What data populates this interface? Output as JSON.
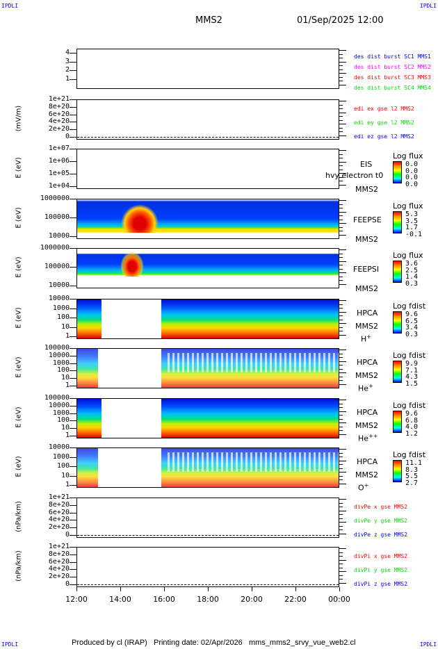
{
  "corners": "IPDLI",
  "header": {
    "spacecraft": "MMS2",
    "datetime": "01/Sep/2025 12:00"
  },
  "chart_data": {
    "type": "heatmap",
    "x_ticks": [
      "12:00",
      "14:00",
      "16:00",
      "18:00",
      "20:00",
      "22:00",
      "00:00"
    ],
    "panels": [
      {
        "id": "des",
        "ylabel": "",
        "yticks": [
          "4",
          "3",
          "2",
          "1"
        ],
        "legend": [
          {
            "text": "des dist burst SC1 MMS1",
            "color": "#0000ff"
          },
          {
            "text": "des dist burst SC2 MMS2",
            "color": "#ff00ff"
          },
          {
            "text": "des dist burst SC3 MMS3",
            "color": "#ff0000"
          },
          {
            "text": "des dist burst SC4 MMS4",
            "color": "#00dd00"
          }
        ]
      },
      {
        "id": "edi",
        "ylabel": "(mV/m)",
        "yticks": [
          "1e+21",
          "8e+20",
          "6e+20",
          "4e+20",
          "2e+20",
          "0"
        ],
        "legend": [
          {
            "text": "edi ex gse l2 MMS2",
            "color": "#ff0000"
          },
          {
            "text": "edi ey gse l2 MMS2",
            "color": "#00dd00"
          },
          {
            "text": "edi ez gse l2 MMS2",
            "color": "#0000ff"
          }
        ]
      },
      {
        "id": "eis",
        "ylabel": "E (eV)",
        "yticks": [
          "1e+07",
          "1e+06",
          "1e+05",
          "1e+04"
        ],
        "side": [
          "EIS",
          "hvy electron t0",
          "MMS2"
        ],
        "cbar_title": "Log flux",
        "cbar": [
          "0.0",
          "0.0",
          "0.0",
          "0.0"
        ]
      },
      {
        "id": "feepse",
        "ylabel": "E (eV)",
        "yticks": [
          "1000000",
          "100000",
          "10000"
        ],
        "side": [
          "FEEPSE",
          "MMS2"
        ],
        "cbar_title": "Log flux",
        "cbar": [
          "5.3",
          "3.5",
          "1.7",
          "-0.1"
        ]
      },
      {
        "id": "feepsi",
        "ylabel": "E (eV)",
        "yticks": [
          "1000000",
          "100000",
          "10000"
        ],
        "side": [
          "FEEPSI",
          "MMS2"
        ],
        "cbar_title": "Log flux",
        "cbar": [
          "3.6",
          "2.5",
          "1.4",
          "0.3"
        ]
      },
      {
        "id": "hplus",
        "ylabel": "E (eV)",
        "yticks": [
          "10000",
          "1000",
          "100",
          "10",
          "1"
        ],
        "side": [
          "HPCA",
          "MMS2"
        ],
        "species": "H",
        "charge": "+",
        "cbar_title": "Log fdist",
        "cbar": [
          "9.6",
          "6.5",
          "3.4",
          "0.3"
        ]
      },
      {
        "id": "heplus",
        "ylabel": "E (eV)",
        "yticks": [
          "100000",
          "10000",
          "1000",
          "100",
          "10",
          "1"
        ],
        "side": [
          "HPCA",
          "MMS2"
        ],
        "species": "He",
        "charge": "+",
        "cbar_title": "Log fdist",
        "cbar": [
          "9.9",
          "7.1",
          "4.3",
          "1.5"
        ]
      },
      {
        "id": "heplusplus",
        "ylabel": "E (eV)",
        "yticks": [
          "100000",
          "10000",
          "1000",
          "100",
          "10",
          "1"
        ],
        "side": [
          "HPCA",
          "MMS2"
        ],
        "species": "He",
        "charge": "++",
        "cbar_title": "Log fdist",
        "cbar": [
          "9.6",
          "6.8",
          "4.0",
          "1.2"
        ]
      },
      {
        "id": "oplus",
        "ylabel": "E (eV)",
        "yticks": [
          "10000",
          "1000",
          "100",
          "10",
          "1"
        ],
        "side": [
          "HPCA",
          "MMS2"
        ],
        "species": "O",
        "charge": "+",
        "cbar_title": "Log fdist",
        "cbar": [
          "11.1",
          "8.3",
          "5.5",
          "2.7"
        ]
      },
      {
        "id": "divpe",
        "ylabel": "(nPa/km)",
        "yticks": [
          "1e+21",
          "8e+20",
          "6e+20",
          "4e+20",
          "2e+20",
          "0"
        ],
        "legend": [
          {
            "text": "divPe x gse MMS2",
            "color": "#ff0000"
          },
          {
            "text": "divPe y gse MMS2",
            "color": "#00dd00"
          },
          {
            "text": "divPe z gse MMS2",
            "color": "#0000ff"
          }
        ]
      },
      {
        "id": "divpi",
        "ylabel": "(nPa/km)",
        "yticks": [
          "1e+21",
          "8e+20",
          "6e+20",
          "4e+20",
          "2e+20",
          "0"
        ],
        "legend": [
          {
            "text": "divPi x gse MMS2",
            "color": "#ff0000"
          },
          {
            "text": "divPi y gse MMS2",
            "color": "#00dd00"
          },
          {
            "text": "divPi z gse MMS2",
            "color": "#0000ff"
          }
        ]
      }
    ]
  },
  "footer": "Produced by cl (IRAP)   Printing date: 02/Apr/2026   mms_mms2_srvy_vue_web2.cl"
}
